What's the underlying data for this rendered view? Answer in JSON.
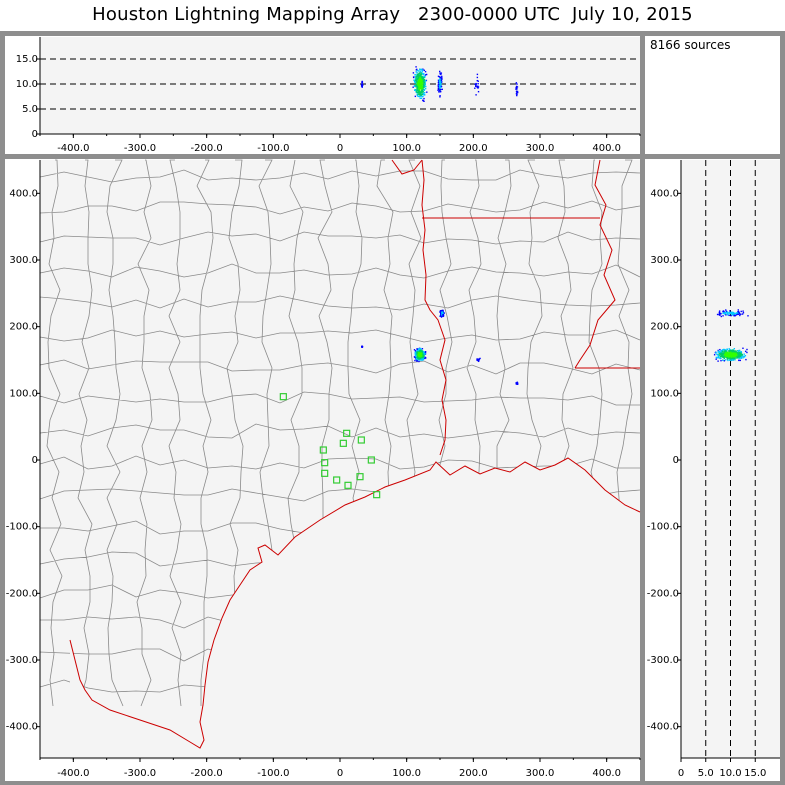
{
  "header": {
    "title": "Houston Lightning Mapping Array   2300-0000 UTC  July 10, 2015",
    "source_count": "8166 sources"
  },
  "colors": {
    "panel_bg": "#f4f4f4",
    "frame": "#8e8e8e",
    "county_lines": "#8a8a8a",
    "state_lines": "#cc0000",
    "coastline": "#cc0000",
    "station_markers": "#33cc33",
    "source_colormap": [
      "#0000ff",
      "#00c8ff",
      "#00cc66",
      "#33ff00"
    ]
  },
  "chart_data": [
    {
      "type": "scatter",
      "panel": "altitude-vs-east-west",
      "xlim": [
        -450,
        450
      ],
      "ylim": [
        0,
        20
      ],
      "x_ticks": [
        "-400.0",
        "-300.0",
        "-200.0",
        "-100.0",
        "0",
        "100.0",
        "200.0",
        "300.0",
        "400.0"
      ],
      "y_ticks": [
        "0",
        "5.0",
        "10.0",
        "15.0"
      ],
      "dashed_reference_lines_km": [
        5,
        10,
        15
      ],
      "source_clusters": [
        {
          "x": 120,
          "y": 10,
          "spread_x": 12,
          "spread_y": 4,
          "density": "high"
        },
        {
          "x": 150,
          "y": 10,
          "spread_x": 4,
          "spread_y": 3,
          "density": "medium"
        },
        {
          "x": 205,
          "y": 10,
          "spread_x": 4,
          "spread_y": 3,
          "density": "low"
        },
        {
          "x": 33,
          "y": 10,
          "spread_x": 1,
          "spread_y": 1,
          "density": "low"
        },
        {
          "x": 265,
          "y": 9,
          "spread_x": 2,
          "spread_y": 2,
          "density": "low"
        }
      ]
    },
    {
      "type": "scatter",
      "panel": "plan-view-map",
      "xlim": [
        -450,
        450
      ],
      "ylim": [
        -450,
        450
      ],
      "x_ticks": [
        "-400.0",
        "-300.0",
        "-200.0",
        "-100.0",
        "0",
        "100.0",
        "200.0",
        "300.0",
        "400.0"
      ],
      "y_ticks": [
        "400.0",
        "300.0",
        "200.0",
        "100.0",
        "0",
        "-100.0",
        "-200.0",
        "-300.0",
        "-400.0"
      ],
      "source_clusters": [
        {
          "x": 120,
          "y": 158,
          "spread_x": 10,
          "spread_y": 12,
          "density": "high"
        },
        {
          "x": 153,
          "y": 220,
          "spread_x": 4,
          "spread_y": 8,
          "density": "medium"
        },
        {
          "x": 207,
          "y": 150,
          "spread_x": 4,
          "spread_y": 4,
          "density": "low"
        },
        {
          "x": 33,
          "y": 170,
          "spread_x": 1,
          "spread_y": 1,
          "density": "low"
        },
        {
          "x": 265,
          "y": 115,
          "spread_x": 2,
          "spread_y": 2,
          "density": "low"
        }
      ],
      "stations": [
        {
          "x": -85,
          "y": 95
        },
        {
          "x": -25,
          "y": 15
        },
        {
          "x": 5,
          "y": 25
        },
        {
          "x": 10,
          "y": 40
        },
        {
          "x": 32,
          "y": 30
        },
        {
          "x": 47,
          "y": 0
        },
        {
          "x": -23,
          "y": -20
        },
        {
          "x": -5,
          "y": -30
        },
        {
          "x": 12,
          "y": -38
        },
        {
          "x": 30,
          "y": -25
        },
        {
          "x": 55,
          "y": -52
        },
        {
          "x": -23,
          "y": -4
        }
      ]
    },
    {
      "type": "scatter",
      "panel": "north-south-vs-altitude",
      "xlim": [
        0,
        20
      ],
      "ylim": [
        -450,
        450
      ],
      "x_ticks": [
        "0",
        "5.0",
        "10.0",
        "15.0"
      ],
      "y_ticks": [
        "400.0",
        "300.0",
        "200.0",
        "100.0",
        "0",
        "-100.0",
        "-200.0",
        "-300.0",
        "-400.0"
      ],
      "dashed_reference_lines_km": [
        5,
        10,
        15
      ],
      "source_clusters": [
        {
          "x": 10,
          "y": 158,
          "spread_x": 4,
          "spread_y": 12,
          "density": "high"
        },
        {
          "x": 10,
          "y": 220,
          "spread_x": 4,
          "spread_y": 6,
          "density": "medium"
        }
      ]
    }
  ]
}
